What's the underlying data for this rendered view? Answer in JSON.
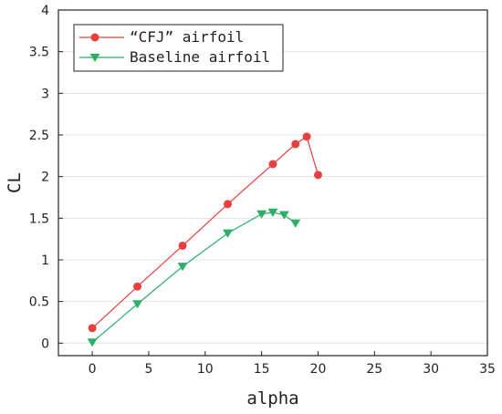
{
  "chart_data": {
    "type": "line",
    "title": "",
    "xlabel": "alpha",
    "ylabel": "CL",
    "xlim": [
      -3,
      35
    ],
    "ylim": [
      -0.15,
      4
    ],
    "x_ticks": [
      0,
      5,
      10,
      15,
      20,
      25,
      30,
      35
    ],
    "y_ticks": [
      0,
      0.5,
      1,
      1.5,
      2,
      2.5,
      3,
      3.5,
      4
    ],
    "x_tick_labels": [
      "0",
      "5",
      "10",
      "15",
      "20",
      "25",
      "30",
      "35"
    ],
    "y_tick_labels": [
      "0",
      "0.5",
      "1",
      "1.5",
      "2",
      "2.5",
      "3",
      "3.5",
      "4"
    ],
    "grid": "horizontal",
    "legend_position": "top-left",
    "series": [
      {
        "name": "“CFJ” airfoil",
        "marker": "circle",
        "color": "#e8403f",
        "x": [
          0,
          4,
          8,
          12,
          16,
          18,
          19,
          20
        ],
        "y": [
          0.18,
          0.68,
          1.17,
          1.67,
          2.15,
          2.39,
          2.48,
          2.02
        ]
      },
      {
        "name": "Baseline airfoil",
        "marker": "triangle-down",
        "color": "#2fae68",
        "x": [
          0,
          4,
          8,
          12,
          15,
          16,
          17,
          18
        ],
        "y": [
          0.01,
          0.47,
          0.92,
          1.32,
          1.55,
          1.57,
          1.54,
          1.44
        ]
      }
    ]
  }
}
